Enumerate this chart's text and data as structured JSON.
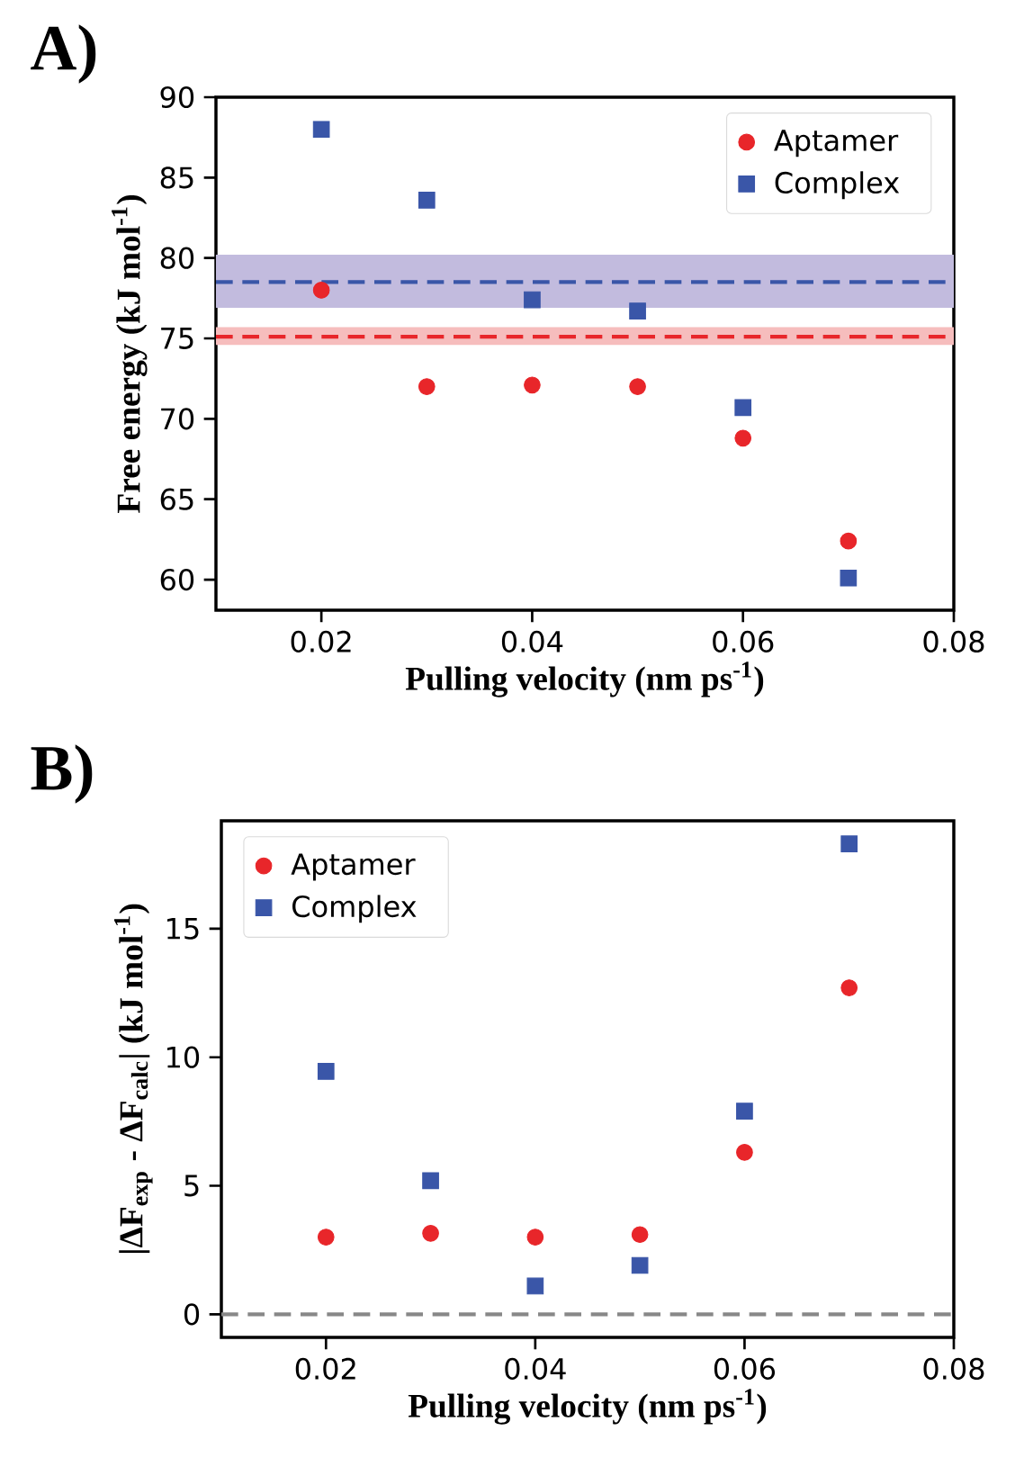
{
  "chart_data": [
    {
      "type": "scatter",
      "title": "A)",
      "xlabel": "Pulling velocity (nm ps$^{-1}$)",
      "ylabel": "Free energy (kJ mol$^{-1}$)",
      "x": [
        0.02,
        0.03,
        0.04,
        0.05,
        0.06,
        0.07
      ],
      "series": [
        {
          "name": "Aptamer",
          "color": "#e8262a",
          "marker": "circle",
          "values": [
            78.0,
            72.0,
            72.1,
            72.0,
            68.8,
            62.4
          ]
        },
        {
          "name": "Complex",
          "color": "#3a56a8",
          "marker": "square",
          "values": [
            88.0,
            83.6,
            77.4,
            76.7,
            70.7,
            60.1
          ]
        }
      ],
      "bands": [
        {
          "axis": "y",
          "from": 76.9,
          "to": 80.2,
          "color": "#c2bbde"
        },
        {
          "axis": "y",
          "from": 74.6,
          "to": 75.7,
          "color": "#f6bdbd"
        }
      ],
      "ref_lines": [
        {
          "axis": "y",
          "value": 78.5,
          "color": "#3a56a8",
          "line_style": "dashed"
        },
        {
          "axis": "y",
          "value": 75.1,
          "color": "#e8262a",
          "line_style": "dashed"
        }
      ],
      "xlim": [
        0.01,
        0.08
      ],
      "xticks": [
        0.02,
        0.04,
        0.06,
        0.08
      ],
      "ylim": [
        58.1,
        90
      ],
      "yticks": [
        60,
        65,
        70,
        75,
        80,
        85,
        90
      ],
      "legend": "top right",
      "grid": false
    },
    {
      "type": "scatter",
      "title": "B)",
      "xlabel": "Pulling velocity (nm ps$^{-1}$)",
      "ylabel": "|ΔF$_{exp}$ - ΔF$_{calc}$| (kJ mol$^{-1}$)",
      "x": [
        0.02,
        0.03,
        0.04,
        0.05,
        0.06,
        0.07
      ],
      "series": [
        {
          "name": "Aptamer",
          "color": "#e8262a",
          "marker": "circle",
          "values": [
            3.0,
            3.15,
            3.0,
            3.1,
            6.3,
            12.7
          ]
        },
        {
          "name": "Complex",
          "color": "#3a56a8",
          "marker": "square",
          "values": [
            9.45,
            5.2,
            1.1,
            1.9,
            7.9,
            18.3
          ]
        }
      ],
      "ref_lines": [
        {
          "axis": "y",
          "value": 0,
          "color": "#888888",
          "line_style": "dashed"
        }
      ],
      "xlim": [
        0.01,
        0.08
      ],
      "xticks": [
        0.02,
        0.04,
        0.06,
        0.08
      ],
      "ylim": [
        -0.9,
        19.2
      ],
      "yticks": [
        0,
        5,
        10,
        15
      ],
      "legend": "top left",
      "grid": false
    }
  ]
}
